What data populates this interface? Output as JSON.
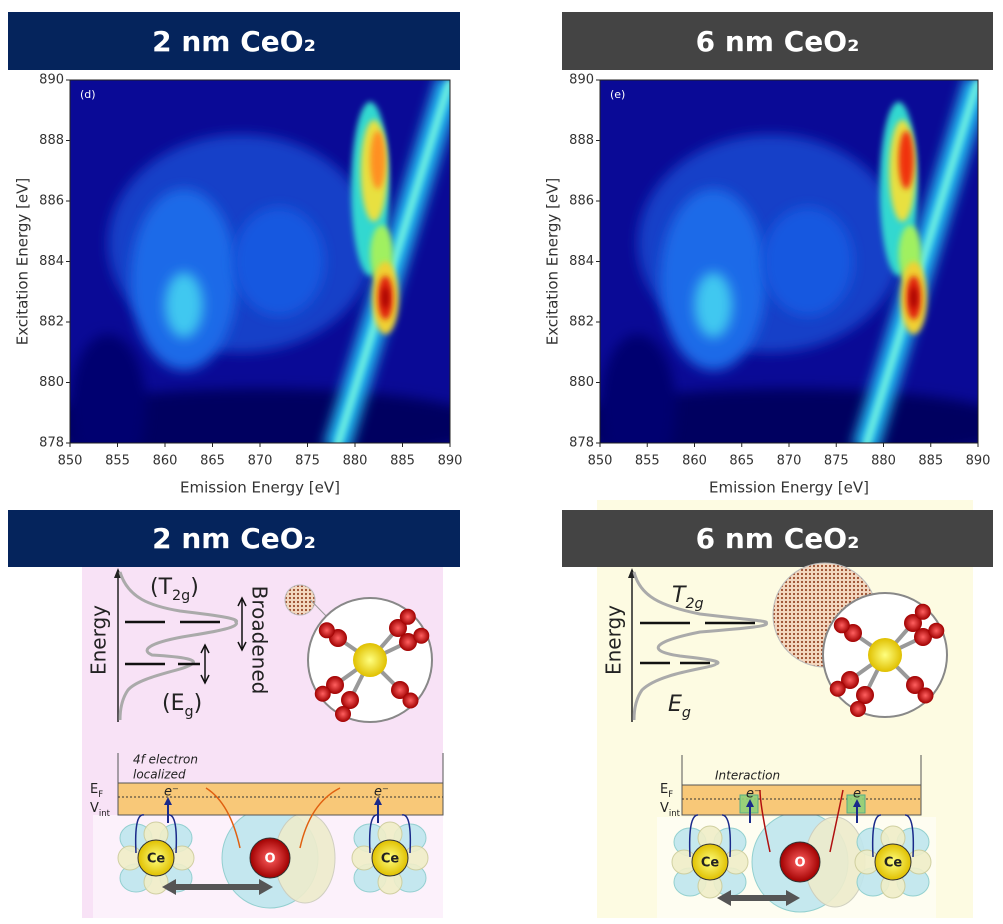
{
  "maps": [
    {
      "header": "2 nm CeO₂",
      "tag": "(d)",
      "x_label": "Emission Energy [eV]",
      "y_label": "Excitation Energy [eV]",
      "x_ticks": [
        850,
        855,
        860,
        865,
        870,
        875,
        880,
        885,
        890
      ],
      "y_ticks": [
        878,
        880,
        882,
        884,
        886,
        888,
        890
      ]
    },
    {
      "header": "6 nm CeO₂",
      "tag": "(e)",
      "x_label": "Emission Energy [eV]",
      "y_label": "Excitation Energy [eV]",
      "x_ticks": [
        850,
        855,
        860,
        865,
        870,
        875,
        880,
        885,
        890
      ],
      "y_ticks": [
        878,
        880,
        882,
        884,
        886,
        888,
        890
      ]
    }
  ],
  "diagrams": [
    {
      "header": "2 nm CeO₂",
      "upper": [
        "(T",
        "2g",
        ")"
      ],
      "lower": [
        "(E",
        "g",
        ")"
      ],
      "energy": "Energy",
      "note": "Broadened",
      "band_note": [
        "4f electron",
        "localized"
      ],
      "ef": [
        "E",
        "F"
      ],
      "vint": [
        "V",
        "int"
      ],
      "electrons": [
        "e⁻",
        "e⁻"
      ],
      "atoms": [
        "Ce",
        "O",
        "Ce"
      ]
    },
    {
      "header": "6 nm CeO₂",
      "upper": [
        "T",
        "2g"
      ],
      "lower": [
        "E",
        "g"
      ],
      "energy": "Energy",
      "band_note": [
        "Interaction"
      ],
      "ef": [
        "E",
        "F"
      ],
      "vint": [
        "V",
        "int"
      ],
      "electrons": [
        "e⁻",
        "e⁻"
      ],
      "atoms": [
        "Ce",
        "O",
        "Ce"
      ]
    }
  ]
}
